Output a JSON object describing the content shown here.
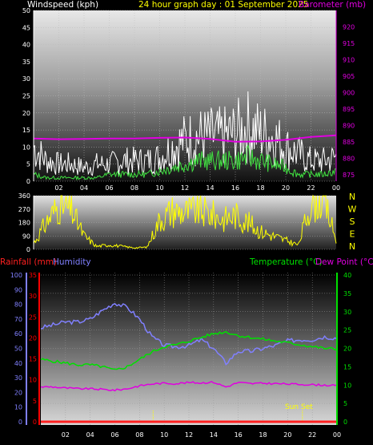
{
  "header": {
    "left_label": "Windspeed (kph)",
    "center_label": "24 hour graph day : 01 September 2025",
    "right_label": "Barometer (mb)"
  },
  "colors": {
    "wind_label": "#ffffff",
    "center_label": "#ffff00",
    "baro": "#e000e0",
    "wind_gust": "#ffffff",
    "wind_avg": "#40e040",
    "direction": "#ffff00",
    "rain_axis": "#ff0000",
    "humidity": "#8080ff",
    "temperature": "#00e000",
    "dewpoint": "#e000e0",
    "rain_line": "#ff2020"
  },
  "x_ticks": [
    "02",
    "04",
    "06",
    "08",
    "10",
    "12",
    "14",
    "16",
    "18",
    "20",
    "22",
    "00"
  ],
  "chart_data": [
    {
      "type": "line",
      "id": "wind_pressure",
      "ylabel": "Windspeed (kph)",
      "ylabel_right": "Barometer (mb)",
      "ylim": [
        0,
        50
      ],
      "ylim_right": [
        873,
        925
      ],
      "y_ticks": [
        0,
        5,
        10,
        15,
        20,
        25,
        30,
        35,
        40,
        45,
        50
      ],
      "y_ticks_right": [
        875,
        880,
        885,
        890,
        895,
        900,
        905,
        910,
        915,
        920
      ],
      "series": [
        {
          "name": "gust",
          "hours": [
            0,
            1,
            2,
            3,
            4,
            5,
            6,
            7,
            8,
            9,
            10,
            11,
            12,
            13,
            14,
            15,
            16,
            17,
            18,
            19,
            20,
            21,
            22,
            23,
            24
          ],
          "values": [
            10,
            6,
            5,
            5,
            4,
            5,
            5,
            6,
            6,
            6,
            7,
            10,
            12,
            13,
            13,
            13,
            14,
            16,
            14,
            13,
            10,
            8,
            6,
            6,
            7
          ]
        },
        {
          "name": "average",
          "hours": [
            0,
            1,
            2,
            3,
            4,
            5,
            6,
            7,
            8,
            9,
            10,
            11,
            12,
            13,
            14,
            15,
            16,
            17,
            18,
            19,
            20,
            21,
            22,
            23,
            24
          ],
          "values": [
            2,
            1,
            1,
            1,
            1,
            1,
            2,
            2,
            2,
            2,
            3,
            4,
            5,
            6,
            6,
            6,
            6,
            7,
            6,
            5,
            4,
            2,
            2,
            2,
            3
          ]
        },
        {
          "name": "barometer",
          "hours": [
            0,
            2,
            4,
            6,
            8,
            10,
            12,
            14,
            16,
            18,
            20,
            22,
            24
          ],
          "values": [
            886.0,
            885.8,
            885.9,
            886.0,
            886.0,
            886.2,
            886.3,
            885.9,
            885.0,
            885.1,
            885.6,
            886.5,
            887.0
          ]
        }
      ]
    },
    {
      "type": "line",
      "id": "wind_direction",
      "y_ticks": [
        0,
        90,
        180,
        270,
        360
      ],
      "ylim": [
        0,
        360
      ],
      "direction_labels": [
        "N",
        "W",
        "S",
        "E",
        "N"
      ],
      "series": [
        {
          "name": "direction",
          "hours": [
            0,
            1,
            2,
            3,
            4,
            5,
            6,
            7,
            8,
            9,
            10,
            11,
            12,
            13,
            14,
            15,
            16,
            17,
            18,
            19,
            20,
            21,
            22,
            23,
            24
          ],
          "values": [
            40,
            180,
            300,
            260,
            90,
            20,
            30,
            20,
            10,
            15,
            200,
            260,
            250,
            260,
            240,
            200,
            230,
            180,
            120,
            90,
            60,
            30,
            320,
            340,
            60
          ]
        }
      ]
    },
    {
      "type": "line",
      "id": "temp_humidity",
      "ylabel_left_outer": "Rainfall (mm)",
      "ylabel_left_inner": "Humidity",
      "ylabel_right_a": "Temperature (°C)",
      "ylabel_right_b": "Dew Point (°C)",
      "humidity_ticks": [
        0,
        10,
        20,
        30,
        40,
        50,
        60,
        70,
        80,
        90,
        100
      ],
      "rain_ticks": [
        0,
        5,
        10,
        15,
        20,
        25,
        30,
        35
      ],
      "temp_ticks": [
        0,
        5,
        10,
        15,
        20,
        25,
        30,
        35,
        40
      ],
      "annotation": "Sun Set",
      "markers_hours": [
        9.1,
        21.2
      ],
      "series": [
        {
          "name": "humidity",
          "hours": [
            0,
            1,
            2,
            3,
            4,
            5,
            6,
            7,
            8,
            9,
            10,
            11,
            12,
            13,
            14,
            15,
            16,
            17,
            18,
            19,
            20,
            21,
            22,
            23,
            24
          ],
          "values": [
            64,
            66,
            68,
            68,
            70,
            76,
            81,
            78,
            70,
            58,
            52,
            51,
            52,
            56,
            50,
            40,
            48,
            48,
            50,
            52,
            55,
            56,
            56,
            58,
            57
          ]
        },
        {
          "name": "temperature",
          "hours": [
            0,
            1,
            2,
            3,
            4,
            5,
            6,
            7,
            8,
            9,
            10,
            11,
            12,
            13,
            14,
            15,
            16,
            17,
            18,
            19,
            20,
            21,
            22,
            23,
            24
          ],
          "values": [
            17,
            16.5,
            16,
            15.5,
            15.5,
            15,
            14,
            15,
            17,
            19,
            20.5,
            21,
            22,
            23,
            24,
            24.5,
            23.5,
            23,
            22.5,
            22,
            21.5,
            21,
            20.5,
            20,
            19.8
          ]
        },
        {
          "name": "dew_point",
          "hours": [
            0,
            1,
            2,
            3,
            4,
            5,
            6,
            7,
            8,
            9,
            10,
            11,
            12,
            13,
            14,
            15,
            16,
            17,
            18,
            19,
            20,
            21,
            22,
            23,
            24
          ],
          "values": [
            9.5,
            9.5,
            9.2,
            9.0,
            9.0,
            8.8,
            8.6,
            9.0,
            9.8,
            10.3,
            10.5,
            10.4,
            10.7,
            10.6,
            10.8,
            9.5,
            10.7,
            10.4,
            10.5,
            10.4,
            10.3,
            10.2,
            10.1,
            10.0,
            9.8
          ]
        },
        {
          "name": "rainfall",
          "hours": [
            0,
            24
          ],
          "values": [
            0,
            0
          ]
        }
      ]
    }
  ]
}
